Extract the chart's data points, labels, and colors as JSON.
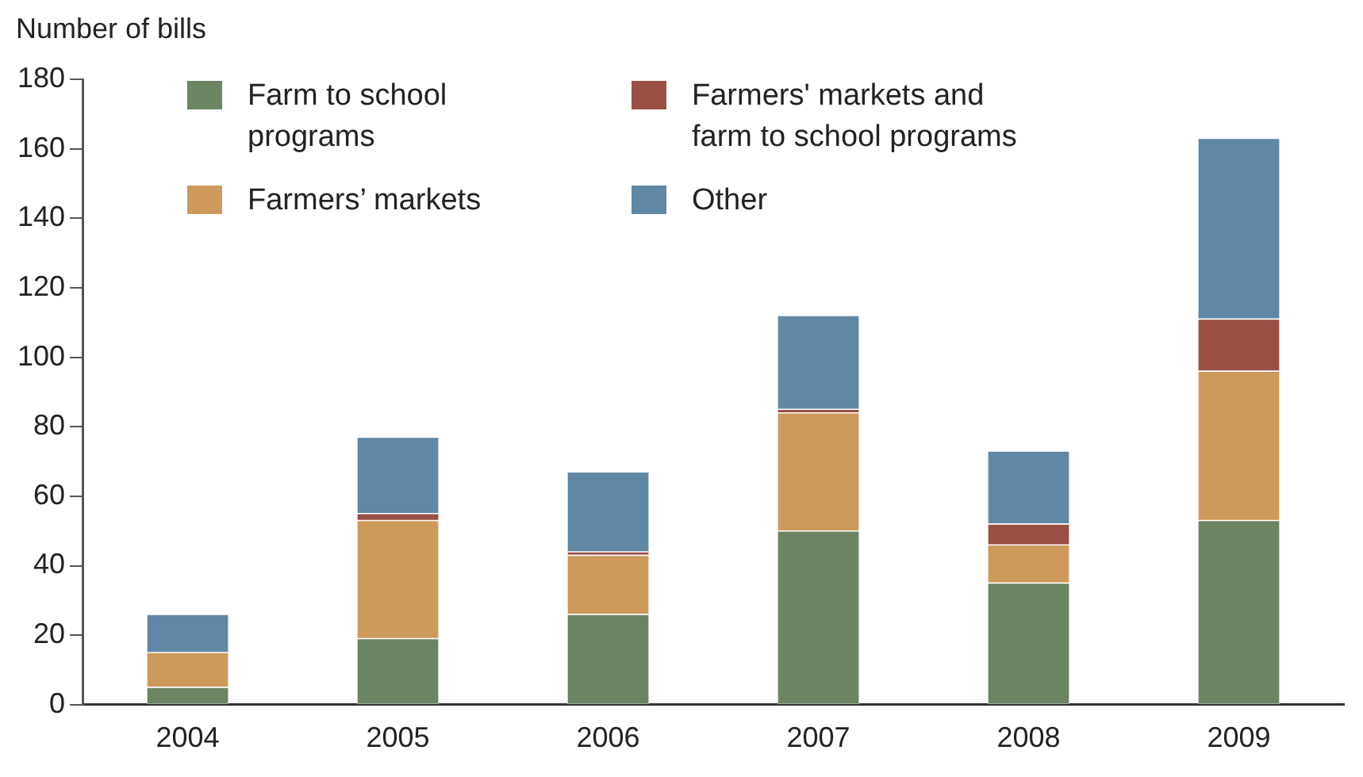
{
  "chart_data": {
    "type": "bar",
    "ylabel": "Number of bills",
    "stacked": true,
    "categories": [
      "2004",
      "2005",
      "2006",
      "2007",
      "2008",
      "2009"
    ],
    "series": [
      {
        "name": "Farm to school programs",
        "color": "#6b8462",
        "values": [
          5,
          19,
          26,
          50,
          35,
          53
        ]
      },
      {
        "name": "Farmers’ markets",
        "color": "#cd9a5b",
        "values": [
          10,
          34,
          17,
          34,
          11,
          43
        ]
      },
      {
        "name": "Farmers' markets and farm to school programs",
        "color": "#9a4f45",
        "values": [
          0,
          2,
          1,
          1,
          6,
          15
        ]
      },
      {
        "name": "Other",
        "color": "#6087a4",
        "values": [
          11,
          22,
          23,
          27,
          21,
          52
        ]
      }
    ],
    "ylim": [
      0,
      180
    ],
    "yticks": [
      0,
      20,
      40,
      60,
      80,
      100,
      120,
      140,
      160,
      180
    ],
    "grid": false,
    "legend": "top left"
  }
}
